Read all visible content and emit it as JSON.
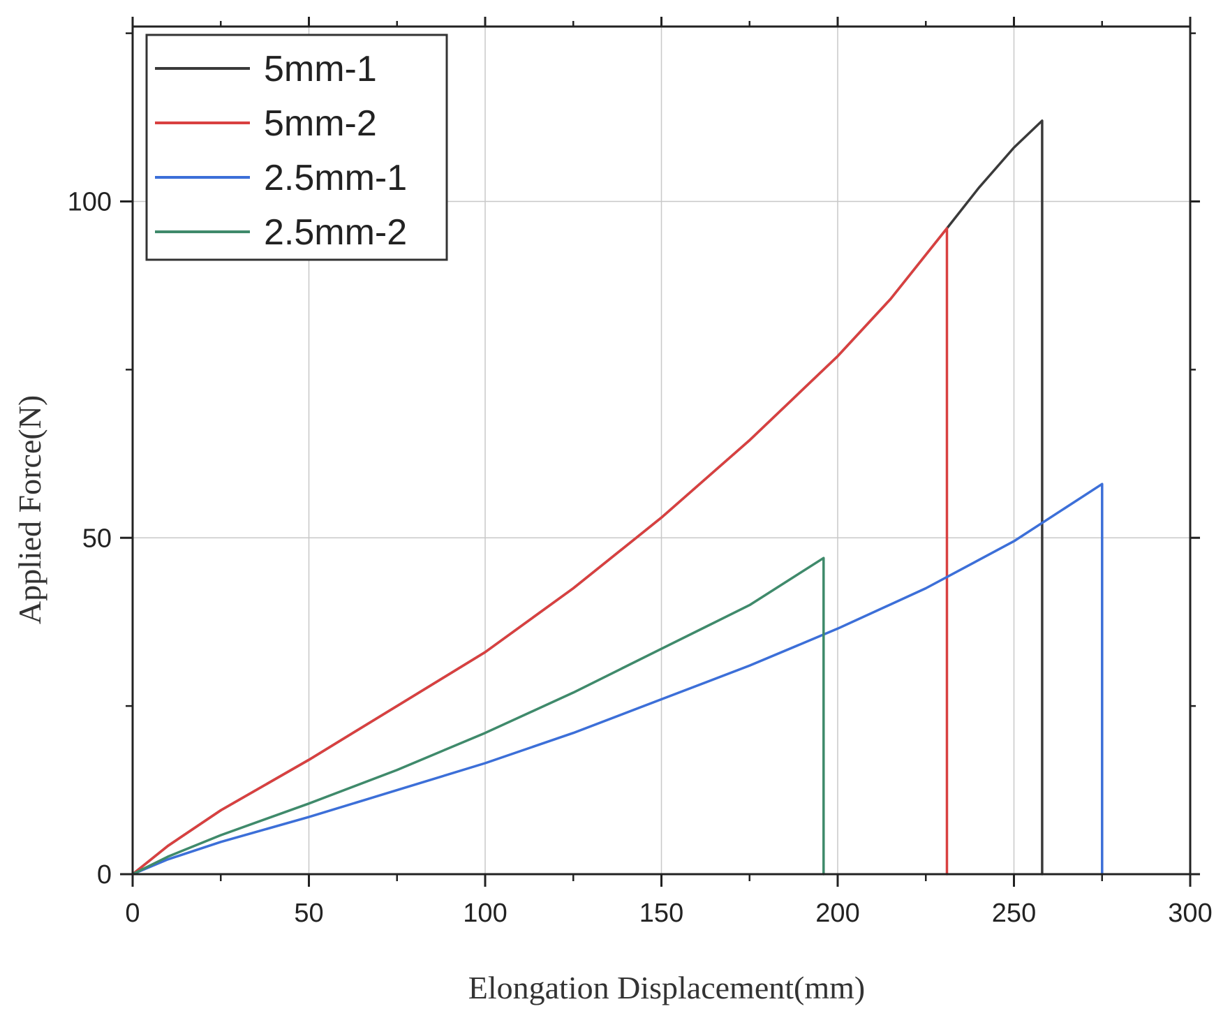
{
  "chart_data": {
    "type": "line",
    "title": "",
    "xlabel": "Elongation Displacement(mm)",
    "ylabel": "Applied Force(N)",
    "xlim": [
      0,
      300
    ],
    "ylim": [
      0,
      126
    ],
    "x_ticks": [
      0,
      50,
      100,
      150,
      200,
      250,
      300
    ],
    "y_ticks": [
      0,
      50,
      100
    ],
    "grid": true,
    "legend_position": "top-left",
    "series": [
      {
        "name": "5mm-1",
        "color": "#3a3a3a",
        "x": [
          0,
          10,
          25,
          50,
          75,
          100,
          125,
          150,
          175,
          200,
          215,
          231,
          240,
          250,
          258,
          258
        ],
        "y": [
          0,
          4.2,
          9.5,
          17,
          25,
          33,
          42.5,
          53,
          64.5,
          77,
          85.5,
          96,
          102,
          108,
          112,
          0
        ]
      },
      {
        "name": "5mm-2",
        "color": "#d94040",
        "x": [
          0,
          10,
          25,
          50,
          75,
          100,
          125,
          150,
          175,
          200,
          215,
          231,
          231
        ],
        "y": [
          0,
          4.2,
          9.5,
          17,
          25,
          33,
          42.5,
          53,
          64.5,
          77,
          85.5,
          96,
          0
        ]
      },
      {
        "name": "2.5mm-1",
        "color": "#3c6fd8",
        "x": [
          0,
          10,
          25,
          50,
          75,
          100,
          125,
          150,
          175,
          200,
          225,
          250,
          275,
          275
        ],
        "y": [
          0,
          2.2,
          4.8,
          8.5,
          12.5,
          16.5,
          21,
          26,
          31,
          36.5,
          42.5,
          49.5,
          58,
          0
        ]
      },
      {
        "name": "2.5mm-2",
        "color": "#3f8a6b",
        "x": [
          0,
          10,
          25,
          50,
          75,
          100,
          125,
          150,
          175,
          196,
          196
        ],
        "y": [
          0,
          2.6,
          5.8,
          10.5,
          15.5,
          21,
          27,
          33.5,
          40,
          47,
          0
        ]
      }
    ]
  }
}
